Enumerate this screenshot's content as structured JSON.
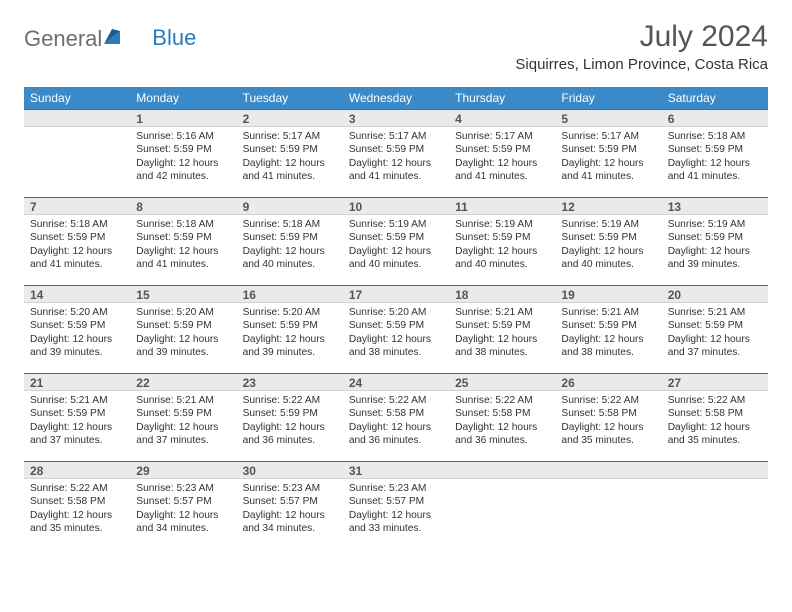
{
  "logo": {
    "text1": "General",
    "text2": "Blue"
  },
  "title": "July 2024",
  "location": "Siquirres, Limon Province, Costa Rica",
  "colors": {
    "header_bg": "#3a8ac9",
    "band_bg": "#e9eaeb",
    "band_border_top": "#3a6f9a",
    "text_gray": "#555555",
    "logo_gray": "#6f6f6f",
    "logo_blue": "#2b7bbf"
  },
  "weekdays": [
    "Sunday",
    "Monday",
    "Tuesday",
    "Wednesday",
    "Thursday",
    "Friday",
    "Saturday"
  ],
  "weeks": [
    [
      {
        "n": "",
        "sr": "",
        "ss": "",
        "dl": ""
      },
      {
        "n": "1",
        "sr": "Sunrise: 5:16 AM",
        "ss": "Sunset: 5:59 PM",
        "dl": "Daylight: 12 hours and 42 minutes."
      },
      {
        "n": "2",
        "sr": "Sunrise: 5:17 AM",
        "ss": "Sunset: 5:59 PM",
        "dl": "Daylight: 12 hours and 41 minutes."
      },
      {
        "n": "3",
        "sr": "Sunrise: 5:17 AM",
        "ss": "Sunset: 5:59 PM",
        "dl": "Daylight: 12 hours and 41 minutes."
      },
      {
        "n": "4",
        "sr": "Sunrise: 5:17 AM",
        "ss": "Sunset: 5:59 PM",
        "dl": "Daylight: 12 hours and 41 minutes."
      },
      {
        "n": "5",
        "sr": "Sunrise: 5:17 AM",
        "ss": "Sunset: 5:59 PM",
        "dl": "Daylight: 12 hours and 41 minutes."
      },
      {
        "n": "6",
        "sr": "Sunrise: 5:18 AM",
        "ss": "Sunset: 5:59 PM",
        "dl": "Daylight: 12 hours and 41 minutes."
      }
    ],
    [
      {
        "n": "7",
        "sr": "Sunrise: 5:18 AM",
        "ss": "Sunset: 5:59 PM",
        "dl": "Daylight: 12 hours and 41 minutes."
      },
      {
        "n": "8",
        "sr": "Sunrise: 5:18 AM",
        "ss": "Sunset: 5:59 PM",
        "dl": "Daylight: 12 hours and 41 minutes."
      },
      {
        "n": "9",
        "sr": "Sunrise: 5:18 AM",
        "ss": "Sunset: 5:59 PM",
        "dl": "Daylight: 12 hours and 40 minutes."
      },
      {
        "n": "10",
        "sr": "Sunrise: 5:19 AM",
        "ss": "Sunset: 5:59 PM",
        "dl": "Daylight: 12 hours and 40 minutes."
      },
      {
        "n": "11",
        "sr": "Sunrise: 5:19 AM",
        "ss": "Sunset: 5:59 PM",
        "dl": "Daylight: 12 hours and 40 minutes."
      },
      {
        "n": "12",
        "sr": "Sunrise: 5:19 AM",
        "ss": "Sunset: 5:59 PM",
        "dl": "Daylight: 12 hours and 40 minutes."
      },
      {
        "n": "13",
        "sr": "Sunrise: 5:19 AM",
        "ss": "Sunset: 5:59 PM",
        "dl": "Daylight: 12 hours and 39 minutes."
      }
    ],
    [
      {
        "n": "14",
        "sr": "Sunrise: 5:20 AM",
        "ss": "Sunset: 5:59 PM",
        "dl": "Daylight: 12 hours and 39 minutes."
      },
      {
        "n": "15",
        "sr": "Sunrise: 5:20 AM",
        "ss": "Sunset: 5:59 PM",
        "dl": "Daylight: 12 hours and 39 minutes."
      },
      {
        "n": "16",
        "sr": "Sunrise: 5:20 AM",
        "ss": "Sunset: 5:59 PM",
        "dl": "Daylight: 12 hours and 39 minutes."
      },
      {
        "n": "17",
        "sr": "Sunrise: 5:20 AM",
        "ss": "Sunset: 5:59 PM",
        "dl": "Daylight: 12 hours and 38 minutes."
      },
      {
        "n": "18",
        "sr": "Sunrise: 5:21 AM",
        "ss": "Sunset: 5:59 PM",
        "dl": "Daylight: 12 hours and 38 minutes."
      },
      {
        "n": "19",
        "sr": "Sunrise: 5:21 AM",
        "ss": "Sunset: 5:59 PM",
        "dl": "Daylight: 12 hours and 38 minutes."
      },
      {
        "n": "20",
        "sr": "Sunrise: 5:21 AM",
        "ss": "Sunset: 5:59 PM",
        "dl": "Daylight: 12 hours and 37 minutes."
      }
    ],
    [
      {
        "n": "21",
        "sr": "Sunrise: 5:21 AM",
        "ss": "Sunset: 5:59 PM",
        "dl": "Daylight: 12 hours and 37 minutes."
      },
      {
        "n": "22",
        "sr": "Sunrise: 5:21 AM",
        "ss": "Sunset: 5:59 PM",
        "dl": "Daylight: 12 hours and 37 minutes."
      },
      {
        "n": "23",
        "sr": "Sunrise: 5:22 AM",
        "ss": "Sunset: 5:59 PM",
        "dl": "Daylight: 12 hours and 36 minutes."
      },
      {
        "n": "24",
        "sr": "Sunrise: 5:22 AM",
        "ss": "Sunset: 5:58 PM",
        "dl": "Daylight: 12 hours and 36 minutes."
      },
      {
        "n": "25",
        "sr": "Sunrise: 5:22 AM",
        "ss": "Sunset: 5:58 PM",
        "dl": "Daylight: 12 hours and 36 minutes."
      },
      {
        "n": "26",
        "sr": "Sunrise: 5:22 AM",
        "ss": "Sunset: 5:58 PM",
        "dl": "Daylight: 12 hours and 35 minutes."
      },
      {
        "n": "27",
        "sr": "Sunrise: 5:22 AM",
        "ss": "Sunset: 5:58 PM",
        "dl": "Daylight: 12 hours and 35 minutes."
      }
    ],
    [
      {
        "n": "28",
        "sr": "Sunrise: 5:22 AM",
        "ss": "Sunset: 5:58 PM",
        "dl": "Daylight: 12 hours and 35 minutes."
      },
      {
        "n": "29",
        "sr": "Sunrise: 5:23 AM",
        "ss": "Sunset: 5:57 PM",
        "dl": "Daylight: 12 hours and 34 minutes."
      },
      {
        "n": "30",
        "sr": "Sunrise: 5:23 AM",
        "ss": "Sunset: 5:57 PM",
        "dl": "Daylight: 12 hours and 34 minutes."
      },
      {
        "n": "31",
        "sr": "Sunrise: 5:23 AM",
        "ss": "Sunset: 5:57 PM",
        "dl": "Daylight: 12 hours and 33 minutes."
      },
      {
        "n": "",
        "sr": "",
        "ss": "",
        "dl": ""
      },
      {
        "n": "",
        "sr": "",
        "ss": "",
        "dl": ""
      },
      {
        "n": "",
        "sr": "",
        "ss": "",
        "dl": ""
      }
    ]
  ]
}
